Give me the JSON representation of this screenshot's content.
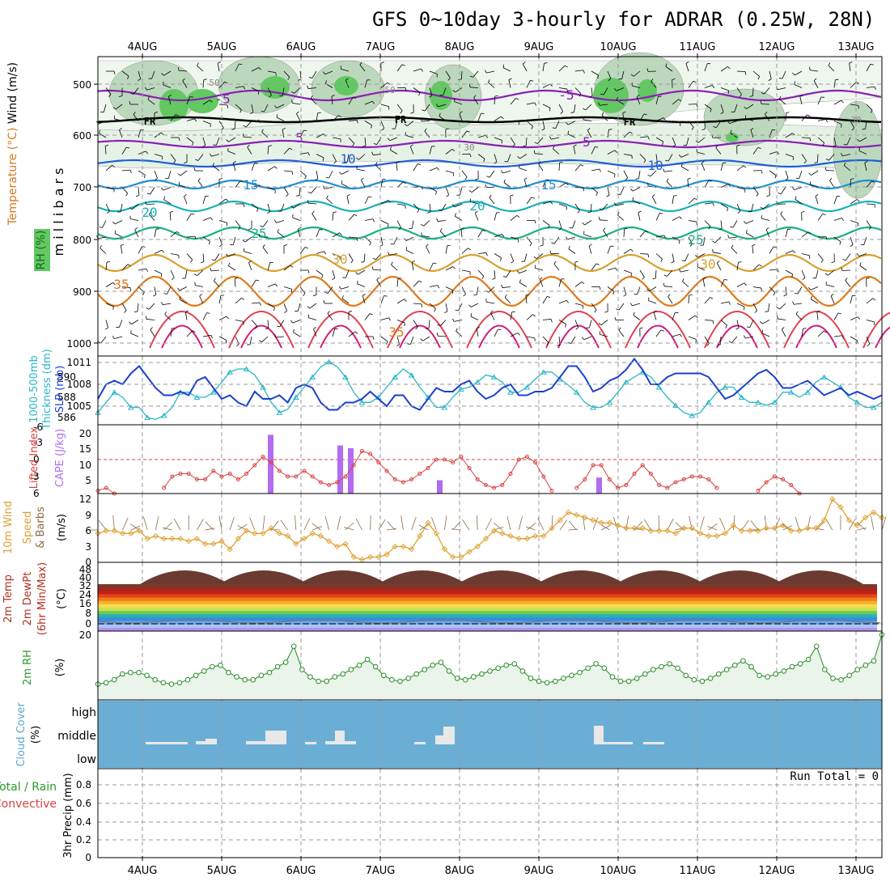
{
  "title": "GFS 0~10day 3-hourly for ADRAR (0.25W, 28N)",
  "dates": [
    "4AUG",
    "5AUG",
    "6AUG",
    "7AUG",
    "8AUG",
    "9AUG",
    "10AUG",
    "11AUG",
    "12AUG",
    "13AUG"
  ],
  "run_total": "Run Total = 0",
  "colors": {
    "grid": "#999999",
    "cloud_bg": "#6aaed6",
    "rh_fill": "#eaf4ea",
    "rh_line": "#2a8a2a",
    "slp": "#1a3fd1",
    "thick": "#29b7c6",
    "li": "#d84040",
    "cape": "#b36bf0",
    "wind": "#e0a030",
    "barb": "#8a6a4a"
  },
  "panels": {
    "upper": {
      "ylabel_wind": "Wind (m/s)",
      "ylabel_temp": "Temperature (°C)",
      "ylabel_rh": "RH (%)",
      "ylabel_mb": "m i l l i b a r s",
      "yticks": [
        "500",
        "600",
        "700",
        "800",
        "900",
        "1000"
      ],
      "fr_label": "FR",
      "isotherm_labels": [
        "-5",
        "-5",
        "5",
        "5",
        "10",
        "10",
        "15",
        "15",
        "20",
        "20",
        "25",
        "25",
        "30",
        "30",
        "35",
        "35"
      ],
      "rh_labels": [
        "50",
        "50",
        "30",
        "30"
      ]
    },
    "slp": {
      "ylabel_left": "1000-500mb",
      "ylabel_left2": "Thickness (dm)",
      "ylabel_right": "SLP (mb)",
      "left_ticks": [
        "590",
        "588",
        "586"
      ],
      "right_ticks": [
        "1011",
        "1008",
        "1005"
      ]
    },
    "li": {
      "ylabel_left": "Lifted Index",
      "ylabel_right": "CAPE (J/kg)",
      "left_ticks": [
        "-6",
        "-3",
        "0",
        "3",
        "6"
      ],
      "right_ticks": [
        "20",
        "15",
        "10",
        "5"
      ]
    },
    "wind10": {
      "ylabel_a": "10m Wind",
      "ylabel_b": "Speed",
      "ylabel_c": "& Barbs",
      "ylabel_d": "(m/s)",
      "ticks": [
        "12",
        "9",
        "6",
        "3",
        "0"
      ]
    },
    "temp2m": {
      "ylabel_a": "2m Temp",
      "ylabel_b": "2m DewPt",
      "ylabel_c": "(6hr Min/Max)",
      "ylabel_d": "(°C)",
      "ticks": [
        "48",
        "40",
        "32",
        "24",
        "16",
        "8",
        "0"
      ]
    },
    "rh2m": {
      "ylabel_a": "2m RH",
      "ylabel_b": "(%)",
      "ticks": [
        "20"
      ]
    },
    "cloud": {
      "ylabel_a": "Cloud Cover",
      "ylabel_b": "(%)",
      "levels": [
        "high",
        "middle",
        "low"
      ]
    },
    "precip": {
      "ylabel_a": "Total / Rain",
      "ylabel_b": "Convective",
      "ylabel_c": "3hr Precip (mm)",
      "ticks": [
        "0.8",
        "0.6",
        "0.4",
        "0.2",
        "0"
      ]
    }
  },
  "chart_data": [
    {
      "type": "line",
      "panel": "SLP / 1000-500mb thickness",
      "series": [
        {
          "name": "SLP (mb)",
          "values": [
            1006.0,
            1008.0,
            1008.5,
            1008.0,
            1009.5,
            1010.5,
            1009.0,
            1007.5,
            1006.5,
            1006.5,
            1007.0,
            1006.5,
            1008.5,
            1009.0,
            1007.5,
            1006.0,
            1006.5,
            1005.5,
            1005.0,
            1007.0,
            1006.0,
            1006.0,
            1006.5,
            1005.5,
            1007.5,
            1008.0,
            1007.5,
            1005.5,
            1004.5,
            1004.5,
            1005.5,
            1005.5,
            1006.0,
            1007.0,
            1006.0,
            1005.0,
            1006.5,
            1006.5,
            1005.0,
            1004.5,
            1006.0,
            1007.5,
            1007.0,
            1007.0,
            1008.0,
            1008.5,
            1007.0,
            1006.0,
            1006.5,
            1007.5,
            1008.0,
            1006.5,
            1006.5,
            1007.0,
            1007.0,
            1007.5,
            1009.0,
            1010.5,
            1010.5,
            1009.0,
            1007.0,
            1007.5,
            1008.5,
            1009.0,
            1010.0,
            1011.5,
            1010.0,
            1008.0,
            1008.0,
            1009.0,
            1009.5,
            1009.5,
            1009.5,
            1009.5,
            1009.0,
            1007.5,
            1006.0,
            1006.5,
            1007.5,
            1008.5,
            1009.5,
            1010.0,
            1009.0,
            1007.5,
            1007.5,
            1008.0,
            1008.5,
            1007.5,
            1006.5,
            1007.0,
            1007.5,
            1006.5,
            1007.0,
            1006.5,
            1006.0,
            1006.5
          ]
        },
        {
          "name": "1000-500mb thickness (dm)",
          "values": [
            586.5,
            587.5,
            588.5,
            588.0,
            587.0,
            587.0,
            586.0,
            585.8,
            586.2,
            587.0,
            588.5,
            588.5,
            588.0,
            588.0,
            588.5,
            589.5,
            590.5,
            590.8,
            590.8,
            590.2,
            589.0,
            587.5,
            586.5,
            586.8,
            588.0,
            589.0,
            590.0,
            591.0,
            591.5,
            591.0,
            590.0,
            588.5,
            587.5,
            587.5,
            588.0,
            589.0,
            590.0,
            590.8,
            590.2,
            589.0,
            588.0,
            587.0,
            587.0,
            588.0,
            588.8,
            589.0,
            589.5,
            590.2,
            590.0,
            589.5,
            588.5,
            588.5,
            589.0,
            589.8,
            590.5,
            590.5,
            589.8,
            589.2,
            588.5,
            587.5,
            587.0,
            587.0,
            587.5,
            588.5,
            589.5,
            590.0,
            590.5,
            590.0,
            589.0,
            588.0,
            587.2,
            586.5,
            586.2,
            586.5,
            587.5,
            588.5,
            589.0,
            589.0,
            588.0,
            587.5,
            587.5,
            587.2,
            587.5,
            588.5,
            588.5,
            588.0,
            588.5,
            589.5,
            590.0,
            589.5,
            589.0,
            588.0,
            587.5,
            587.0,
            587.0,
            587.5
          ]
        }
      ]
    },
    {
      "type": "line",
      "panel": "Lifted Index / CAPE",
      "series": [
        {
          "name": "Lifted Index",
          "values": [
            5.5,
            5.0,
            6.0,
            7.0,
            7.5,
            8.0,
            8.0,
            7.5,
            5.0,
            3.0,
            2.5,
            2.5,
            3.5,
            3.5,
            2.0,
            3.0,
            2.5,
            3.5,
            2.5,
            1.0,
            -0.5,
            0.5,
            2.0,
            3.0,
            3.0,
            2.0,
            3.0,
            4.0,
            4.5,
            4.0,
            3.0,
            1.0,
            -1.5,
            -1.0,
            0.5,
            2.0,
            3.5,
            4.0,
            3.5,
            2.5,
            1.5,
            0.0,
            0.0,
            0.5,
            -0.5,
            1.5,
            3.5,
            4.5,
            5.0,
            4.5,
            2.5,
            0.0,
            -0.5,
            0.5,
            3.0,
            5.5,
            7.0,
            6.5,
            5.0,
            3.5,
            1.0,
            1.0,
            3.5,
            5.0,
            4.5,
            2.5,
            1.0,
            2.5,
            4.5,
            5.0,
            4.0,
            3.5,
            3.0,
            3.0,
            3.5,
            5.0,
            6.5,
            7.5,
            8.0,
            7.0,
            5.5,
            4.0,
            3.0,
            3.5,
            4.5,
            6.0,
            7.5,
            8.5,
            8.5,
            8.0,
            7.5,
            8.0,
            9.0,
            9.0,
            9.0,
            9.0
          ]
        }
      ],
      "bars": [
        {
          "name": "CAPE (J/kg)",
          "points": [
            {
              "day": "6AUG",
              "value": 22
            },
            {
              "day": "7AUG",
              "value": 18
            },
            {
              "day": "7AUG",
              "value": 17
            },
            {
              "day": "8AUG",
              "value": 5
            },
            {
              "day": "10AUG",
              "value": 6
            }
          ]
        }
      ]
    },
    {
      "type": "line",
      "panel": "10m wind speed",
      "units": "m/s",
      "series": [
        {
          "name": "10m Wind Speed",
          "values": [
            5.5,
            6.0,
            6.0,
            5.5,
            5.5,
            6.0,
            4.5,
            5.0,
            4.5,
            4.5,
            4.5,
            4.0,
            4.5,
            3.5,
            3.5,
            4.0,
            2.5,
            4.5,
            6.0,
            5.5,
            5.5,
            6.5,
            5.5,
            5.0,
            3.5,
            4.5,
            5.5,
            5.0,
            4.0,
            3.0,
            3.5,
            1.0,
            0.5,
            1.0,
            1.0,
            1.5,
            3.0,
            3.0,
            2.5,
            5.0,
            7.5,
            5.5,
            2.5,
            1.0,
            1.0,
            2.0,
            3.0,
            4.5,
            6.0,
            5.5,
            5.0,
            4.5,
            4.5,
            5.0,
            5.0,
            6.5,
            8.0,
            9.5,
            9.0,
            8.5,
            8.0,
            7.5,
            7.5,
            7.0,
            6.5,
            6.5,
            6.5,
            6.0,
            6.0,
            6.0,
            5.5,
            6.5,
            6.5,
            5.5,
            5.0,
            5.0,
            5.5,
            7.0,
            6.0,
            6.0,
            6.0,
            6.5,
            6.5,
            7.0,
            6.0,
            6.0,
            6.5,
            6.5,
            8.0,
            12.0,
            10.5,
            8.0,
            7.0,
            8.5,
            9.5,
            8.5
          ]
        }
      ]
    },
    {
      "type": "area",
      "panel": "2m temperature",
      "units": "°C",
      "ylim": [
        0,
        48
      ],
      "series": [
        {
          "name": "2m Temp max (daily)",
          "values": [
            44,
            44,
            44,
            44,
            44,
            44,
            44,
            44,
            44,
            44
          ]
        },
        {
          "name": "2m Temp min (daily)",
          "values": [
            33,
            33,
            33,
            33,
            33,
            33,
            33,
            33,
            33,
            33
          ]
        }
      ]
    },
    {
      "type": "line",
      "panel": "2m RH",
      "units": "%",
      "series": [
        {
          "name": "2m RH",
          "values": [
            4.0,
            4.5,
            5.5,
            7.5,
            8.0,
            8.0,
            7.0,
            5.5,
            4.5,
            4.0,
            4.5,
            5.5,
            7.0,
            8.5,
            10.0,
            10.5,
            8.0,
            6.5,
            5.5,
            5.5,
            7.0,
            8.0,
            10.0,
            11.5,
            17.0,
            9.0,
            6.5,
            5.0,
            5.0,
            6.5,
            7.5,
            9.0,
            10.5,
            12.5,
            10.0,
            7.0,
            5.5,
            5.0,
            6.0,
            7.5,
            9.0,
            10.5,
            11.5,
            8.5,
            6.0,
            5.5,
            6.5,
            7.5,
            8.5,
            9.5,
            10.5,
            11.0,
            8.5,
            6.0,
            5.0,
            4.5,
            5.0,
            6.0,
            7.0,
            8.0,
            9.5,
            11.0,
            9.5,
            6.5,
            5.0,
            5.0,
            6.0,
            7.5,
            9.0,
            10.0,
            11.0,
            9.5,
            7.0,
            5.5,
            5.0,
            6.0,
            7.5,
            9.0,
            10.5,
            12.0,
            10.0,
            7.0,
            6.5,
            7.5,
            8.5,
            10.0,
            11.0,
            12.5,
            17.0,
            9.0,
            6.0,
            5.5,
            7.0,
            9.0,
            10.5,
            12.0,
            21.0
          ]
        }
      ]
    }
  ]
}
